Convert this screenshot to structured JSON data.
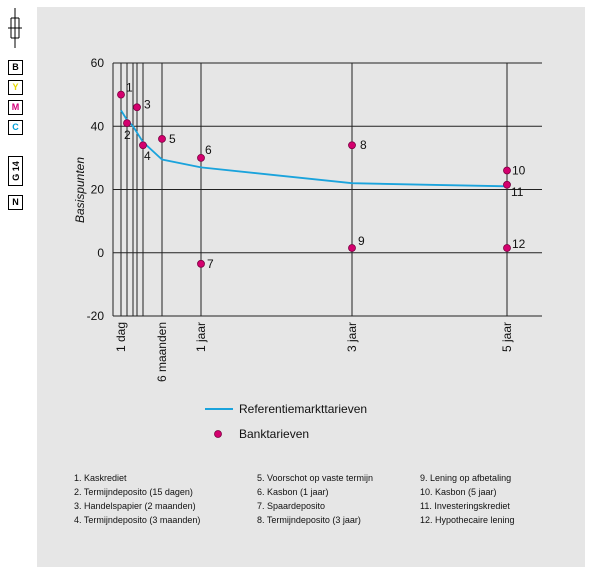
{
  "margin_marks": {
    "color_patches": [
      {
        "label": "B",
        "color": "#000000"
      },
      {
        "label": "Y",
        "color": "#e6d800"
      },
      {
        "label": "M",
        "color": "#d4007a"
      },
      {
        "label": "C",
        "color": "#00a0d8"
      }
    ],
    "page_code": "G 14",
    "bottom_patch": "N"
  },
  "chart_data": {
    "type": "line",
    "ylabel": "Basispunten",
    "ylim": [
      -20,
      60
    ],
    "y_ticks": [
      -20,
      0,
      20,
      40,
      60
    ],
    "x_ticks": [
      {
        "label": "1 dag",
        "months": 0.033
      },
      {
        "label": "6 maanden",
        "months": 6
      },
      {
        "label": "1 jaar",
        "months": 12
      },
      {
        "label": "3 jaar",
        "months": 36
      },
      {
        "label": "5 jaar",
        "months": 60
      }
    ],
    "grid_months": [
      0.033,
      0.5,
      1,
      2,
      3,
      6,
      12,
      36,
      60
    ],
    "series": [
      {
        "name": "Referentiemarkttarieven",
        "color": "#1aa3dc",
        "points": [
          [
            0.033,
            45
          ],
          [
            0.5,
            42
          ],
          [
            1,
            40
          ],
          [
            3,
            35
          ],
          [
            6,
            29.5
          ],
          [
            12,
            27
          ],
          [
            24,
            24.5
          ],
          [
            36,
            22
          ],
          [
            48,
            21.5
          ],
          [
            60,
            21
          ]
        ]
      }
    ],
    "bank_rates": {
      "name": "Banktarieven",
      "color": "#d4006e",
      "points": [
        {
          "label": "1",
          "months": 0.033,
          "value": 50
        },
        {
          "label": "2",
          "months": 0.5,
          "value": 41
        },
        {
          "label": "3",
          "months": 2,
          "value": 46
        },
        {
          "label": "4",
          "months": 3,
          "value": 34
        },
        {
          "label": "5",
          "months": 6,
          "value": 36
        },
        {
          "label": "6",
          "months": 12,
          "value": 30
        },
        {
          "label": "7",
          "months": 12,
          "value": -3.5
        },
        {
          "label": "8",
          "months": 36,
          "value": 34
        },
        {
          "label": "9",
          "months": 36,
          "value": 1.5
        },
        {
          "label": "10",
          "months": 60,
          "value": 26
        },
        {
          "label": "11",
          "months": 60,
          "value": 21.5
        },
        {
          "label": "12",
          "months": 60,
          "value": 1.5
        }
      ]
    },
    "legend_position": "bottom"
  },
  "footnotes": [
    [
      "1. Kaskrediet",
      "2. Termijndeposito (15 dagen)",
      "3. Handelspapier (2 maanden)",
      "4. Termijndeposito (3 maanden)"
    ],
    [
      "5. Voorschot op vaste termijn",
      "6. Kasbon (1 jaar)",
      "7. Spaardeposito",
      "8. Termijndeposito (3 jaar)"
    ],
    [
      "9. Lening op afbetaling",
      "10. Kasbon (5 jaar)",
      "11. Investeringskrediet",
      "12. Hypothecaire lening"
    ]
  ]
}
